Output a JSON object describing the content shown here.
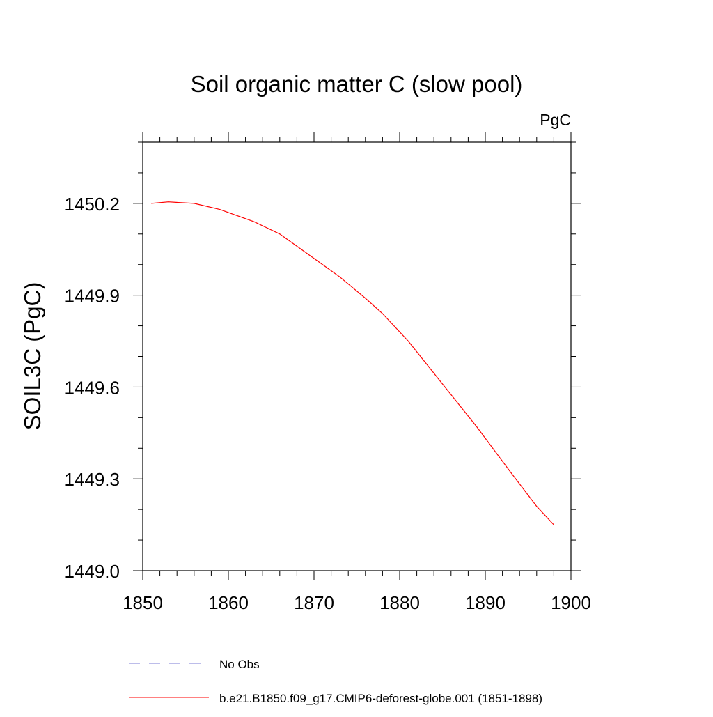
{
  "chart_data": {
    "type": "line",
    "title": "Soil organic matter C (slow pool)",
    "units_label": "PgC",
    "ylabel": "SOIL3C  (PgC)",
    "xlabel": "",
    "xlim": [
      1850,
      1900
    ],
    "ylim": [
      1449.0,
      1450.4
    ],
    "xticks": [
      1850,
      1860,
      1870,
      1880,
      1890,
      1900
    ],
    "xtick_labels": [
      "1850",
      "1860",
      "1870",
      "1880",
      "1890",
      "1900"
    ],
    "yticks": [
      1449.0,
      1449.3,
      1449.6,
      1449.9,
      1450.2
    ],
    "ytick_labels": [
      "1449.0",
      "1449.3",
      "1449.6",
      "1449.9",
      "1450.2"
    ],
    "x_minor_step": 2,
    "y_minor_step": 0.1,
    "grid": false,
    "legend_placement": "bottom",
    "series": [
      {
        "name": "b.e21.B1850.f09_g17.CMIP6-deforest-globe.001 (1851-1898)",
        "color": "#ff0000",
        "style": "solid",
        "x": [
          1851,
          1853,
          1856,
          1859,
          1863,
          1866,
          1870,
          1873,
          1876,
          1878,
          1881,
          1885,
          1889,
          1893,
          1896,
          1898
        ],
        "y": [
          1450.2,
          1450.205,
          1450.2,
          1450.18,
          1450.14,
          1450.1,
          1450.02,
          1449.96,
          1449.89,
          1449.84,
          1449.75,
          1449.61,
          1449.47,
          1449.32,
          1449.21,
          1449.15
        ]
      }
    ],
    "legend": [
      {
        "label": "No Obs",
        "color": "#7b7bd6",
        "style": "dashed"
      },
      {
        "label": "b.e21.B1850.f09_g17.CMIP6-deforest-globe.001 (1851-1898)",
        "color": "#ff0000",
        "style": "solid"
      }
    ]
  }
}
